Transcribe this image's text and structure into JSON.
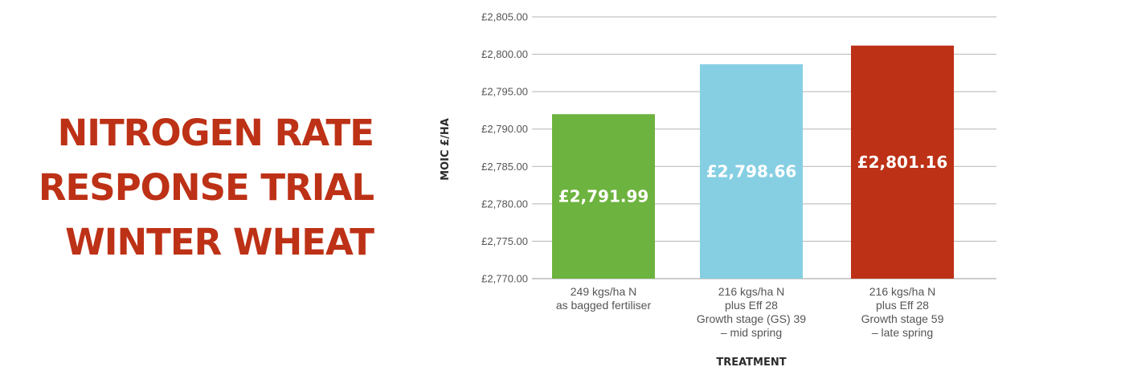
{
  "title": {
    "lines": [
      "NITROGEN RATE",
      "RESPONSE TRIAL",
      "WINTER WHEAT"
    ],
    "color": "#BD3116"
  },
  "chart_data": {
    "type": "bar",
    "categories": [
      [
        "249 kgs/ha N",
        "as bagged fertiliser"
      ],
      [
        "216 kgs/ha N",
        "plus Eff 28",
        "Growth stage (GS) 39",
        "– mid spring"
      ],
      [
        "216 kgs/ha N",
        "plus Eff 28",
        "Growth stage 59",
        "– late spring"
      ]
    ],
    "values": [
      2791.99,
      2798.66,
      2801.16
    ],
    "data_labels": [
      "£2,791.99",
      "£2,798.66",
      "£2,801.16"
    ],
    "colors": [
      "#6DB33F",
      "#86CFE3",
      "#BD3116"
    ],
    "xlabel": "TREATMENT",
    "ylabel": "MOIC £/HA",
    "ylim": [
      2770,
      2805
    ],
    "yticks": [
      2770,
      2775,
      2780,
      2785,
      2790,
      2795,
      2800,
      2805
    ],
    "ytick_labels": [
      "£2,770.00",
      "£2,775.00",
      "£2,780.00",
      "£2,785.00",
      "£2,790.00",
      "£2,795.00",
      "£2,800.00",
      "£2,805.00"
    ],
    "grid": true,
    "legend": false
  }
}
